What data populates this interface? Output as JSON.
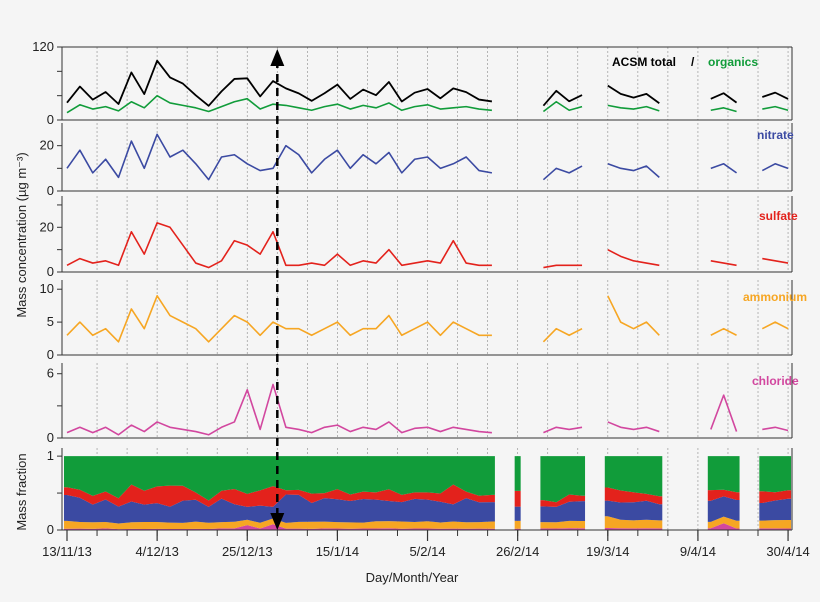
{
  "chart_data": {
    "type": "line",
    "xlabel": "Day/Month/Year",
    "ylabel": "Mass concentration (µg m⁻³)",
    "ylabel_fraction": "Mass fraction",
    "x_ticks": [
      "13/11/13",
      "4/12/13",
      "25/12/13",
      "15/1/14",
      "5/2/14",
      "26/2/14",
      "19/3/14",
      "9/4/14",
      "30/4/14"
    ],
    "x_range": [
      "2013-11-13",
      "2014-05-01"
    ],
    "grid": "vertical dotted weekly",
    "marker_date": "2014-01-01",
    "colors": {
      "total": "#000000",
      "organics": "#119c3a",
      "nitrate": "#3b4aa2",
      "sulfate": "#e3221c",
      "ammonium": "#f6a623",
      "chloride": "#d2479f"
    },
    "legend": {
      "total": "ACSM total",
      "separator": "/",
      "organics": "organics",
      "nitrate": "nitrate",
      "sulfate": "sulfate",
      "ammonium": "ammonium",
      "chloride": "chloride"
    },
    "panels": [
      {
        "series": [
          "total",
          "organics"
        ],
        "ylim": [
          0,
          120
        ],
        "yticks": [
          0,
          40,
          80,
          120
        ],
        "ytick_labels": [
          "0",
          "",
          "",
          "120"
        ]
      },
      {
        "series": [
          "nitrate"
        ],
        "ylim": [
          0,
          30
        ],
        "yticks": [
          0,
          10,
          20
        ],
        "ytick_labels": [
          "0",
          "",
          "20"
        ]
      },
      {
        "series": [
          "sulfate"
        ],
        "ylim": [
          0,
          34
        ],
        "yticks": [
          0,
          10,
          20,
          30
        ],
        "ytick_labels": [
          "0",
          "",
          "20",
          ""
        ]
      },
      {
        "series": [
          "ammonium"
        ],
        "ylim": [
          0,
          11.4
        ],
        "yticks": [
          0,
          5,
          10
        ],
        "ytick_labels": [
          "0",
          "5",
          "10"
        ]
      },
      {
        "series": [
          "chloride"
        ],
        "ylim": [
          0,
          7
        ],
        "yticks": [
          0,
          3,
          6
        ],
        "ytick_labels": [
          "0",
          "",
          "6"
        ]
      },
      {
        "series": [
          "fraction"
        ],
        "ylim": [
          0,
          1.11
        ],
        "yticks": [
          0,
          0.5,
          1
        ],
        "ytick_labels": [
          "0",
          "",
          "1"
        ]
      }
    ],
    "x": [
      "2013-11-13",
      "2013-11-16",
      "2013-11-19",
      "2013-11-22",
      "2013-11-25",
      "2013-11-28",
      "2013-12-01",
      "2013-12-04",
      "2013-12-07",
      "2013-12-10",
      "2013-12-13",
      "2013-12-16",
      "2013-12-19",
      "2013-12-22",
      "2013-12-25",
      "2013-12-28",
      "2013-12-31",
      "2014-01-03",
      "2014-01-06",
      "2014-01-09",
      "2014-01-12",
      "2014-01-15",
      "2014-01-18",
      "2014-01-21",
      "2014-01-24",
      "2014-01-27",
      "2014-01-30",
      "2014-02-02",
      "2014-02-05",
      "2014-02-08",
      "2014-02-11",
      "2014-02-14",
      "2014-02-17",
      "2014-02-20",
      "2014-02-23",
      "2014-02-26",
      "2014-03-01",
      "2014-03-04",
      "2014-03-07",
      "2014-03-10",
      "2014-03-13",
      "2014-03-16",
      "2014-03-19",
      "2014-03-22",
      "2014-03-25",
      "2014-03-28",
      "2014-03-31",
      "2014-04-03",
      "2014-04-06",
      "2014-04-09",
      "2014-04-12",
      "2014-04-15",
      "2014-04-18",
      "2014-04-21",
      "2014-04-24",
      "2014-04-27",
      "2014-04-30"
    ],
    "series": {
      "organics": [
        12,
        25,
        18,
        22,
        15,
        30,
        20,
        40,
        28,
        24,
        20,
        14,
        22,
        30,
        35,
        18,
        26,
        24,
        20,
        16,
        22,
        26,
        18,
        24,
        20,
        28,
        16,
        22,
        25,
        18,
        20,
        22,
        18,
        16,
        null,
        22,
        null,
        14,
        30,
        16,
        22,
        null,
        24,
        20,
        18,
        22,
        15,
        null,
        null,
        null,
        16,
        20,
        14,
        null,
        18,
        22,
        16
      ],
      "nitrate": [
        10,
        18,
        8,
        14,
        6,
        22,
        10,
        25,
        15,
        18,
        12,
        5,
        15,
        16,
        12,
        9,
        10,
        20,
        16,
        8,
        14,
        18,
        10,
        16,
        12,
        17,
        8,
        14,
        15,
        10,
        12,
        15,
        9,
        8,
        null,
        9,
        null,
        5,
        10,
        8,
        11,
        null,
        12,
        10,
        9,
        11,
        6,
        null,
        null,
        null,
        10,
        12,
        8,
        null,
        9,
        12,
        10
      ],
      "sulfate": [
        3,
        6,
        4,
        5,
        3,
        18,
        8,
        22,
        20,
        12,
        4,
        2,
        5,
        14,
        12,
        8,
        18,
        3,
        3,
        4,
        3,
        8,
        3,
        5,
        4,
        10,
        3,
        4,
        5,
        4,
        14,
        4,
        3,
        3,
        null,
        10,
        null,
        2,
        3,
        3,
        3,
        null,
        10,
        7,
        5,
        4,
        3,
        null,
        null,
        null,
        5,
        4,
        3,
        null,
        6,
        5,
        4
      ],
      "ammonium": [
        3,
        5,
        3,
        4,
        2,
        7,
        4,
        9,
        6,
        5,
        4,
        2,
        4,
        6,
        5,
        3,
        5,
        4,
        4,
        3,
        4,
        5,
        3,
        4,
        4,
        6,
        3,
        4,
        5,
        3,
        5,
        4,
        3,
        3,
        null,
        5,
        null,
        2,
        4,
        3,
        4,
        null,
        9,
        5,
        4,
        5,
        3,
        null,
        null,
        null,
        3,
        4,
        3,
        null,
        4,
        5,
        4
      ],
      "chloride": [
        0.5,
        1,
        0.5,
        1,
        0.3,
        1.2,
        0.6,
        1.5,
        1,
        0.8,
        0.6,
        0.3,
        1,
        1.5,
        4.5,
        0.8,
        5,
        1,
        0.8,
        0.5,
        1,
        1.2,
        0.6,
        1,
        0.8,
        1.5,
        0.5,
        0.9,
        1,
        0.6,
        1,
        0.8,
        0.6,
        0.5,
        null,
        0.8,
        null,
        0.5,
        1,
        0.8,
        1,
        null,
        1.5,
        1,
        0.8,
        1,
        0.6,
        null,
        null,
        null,
        0.8,
        4,
        0.6,
        null,
        0.8,
        1,
        0.7
      ]
    }
  }
}
